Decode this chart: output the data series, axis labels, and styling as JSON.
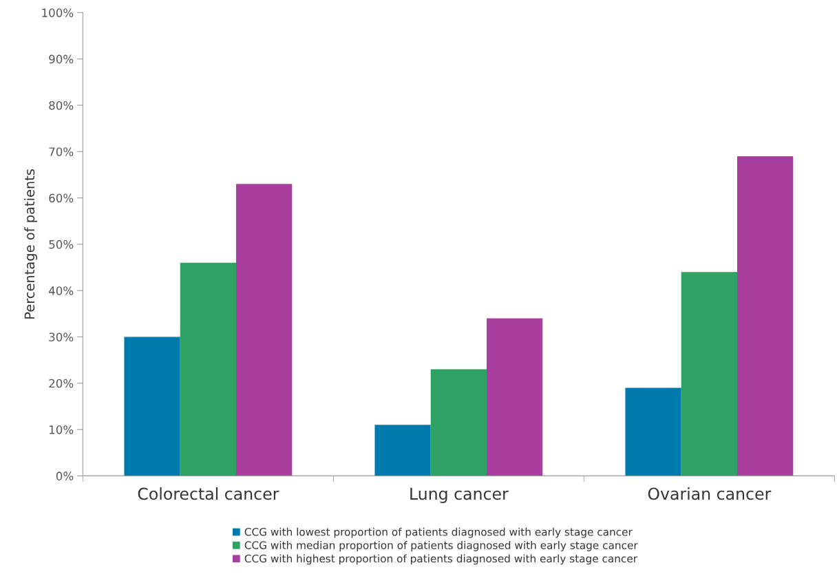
{
  "chart_data": {
    "type": "bar",
    "ylabel": "Percentage of patients",
    "categories": [
      "Colorectal cancer",
      "Lung cancer",
      "Ovarian cancer"
    ],
    "series": [
      {
        "name": "CCG with lowest proportion of patients diagnosed with early stage cancer",
        "color": "#0079ad",
        "values": [
          30,
          11,
          19
        ]
      },
      {
        "name": "CCG with median proportion of patients diagnosed with early stage cancer",
        "color": "#2ea264",
        "values": [
          46,
          23,
          44
        ]
      },
      {
        "name": "CCG with highest proportion of patients diagnosed with early stage cancer",
        "color": "#a83f9e",
        "values": [
          63,
          34,
          69
        ]
      }
    ],
    "ylim": [
      0,
      100
    ],
    "yticks": [
      {
        "value": 0,
        "label": "0%"
      },
      {
        "value": 10,
        "label": "10%"
      },
      {
        "value": 20,
        "label": "20%"
      },
      {
        "value": 30,
        "label": "30%"
      },
      {
        "value": 40,
        "label": "40%"
      },
      {
        "value": 50,
        "label": "50%"
      },
      {
        "value": 60,
        "label": "60%"
      },
      {
        "value": 70,
        "label": "70%"
      },
      {
        "value": 80,
        "label": "80%"
      },
      {
        "value": 90,
        "label": "90%"
      },
      {
        "value": 100,
        "label": "100%"
      }
    ],
    "grid": false,
    "legend": "bottom"
  }
}
